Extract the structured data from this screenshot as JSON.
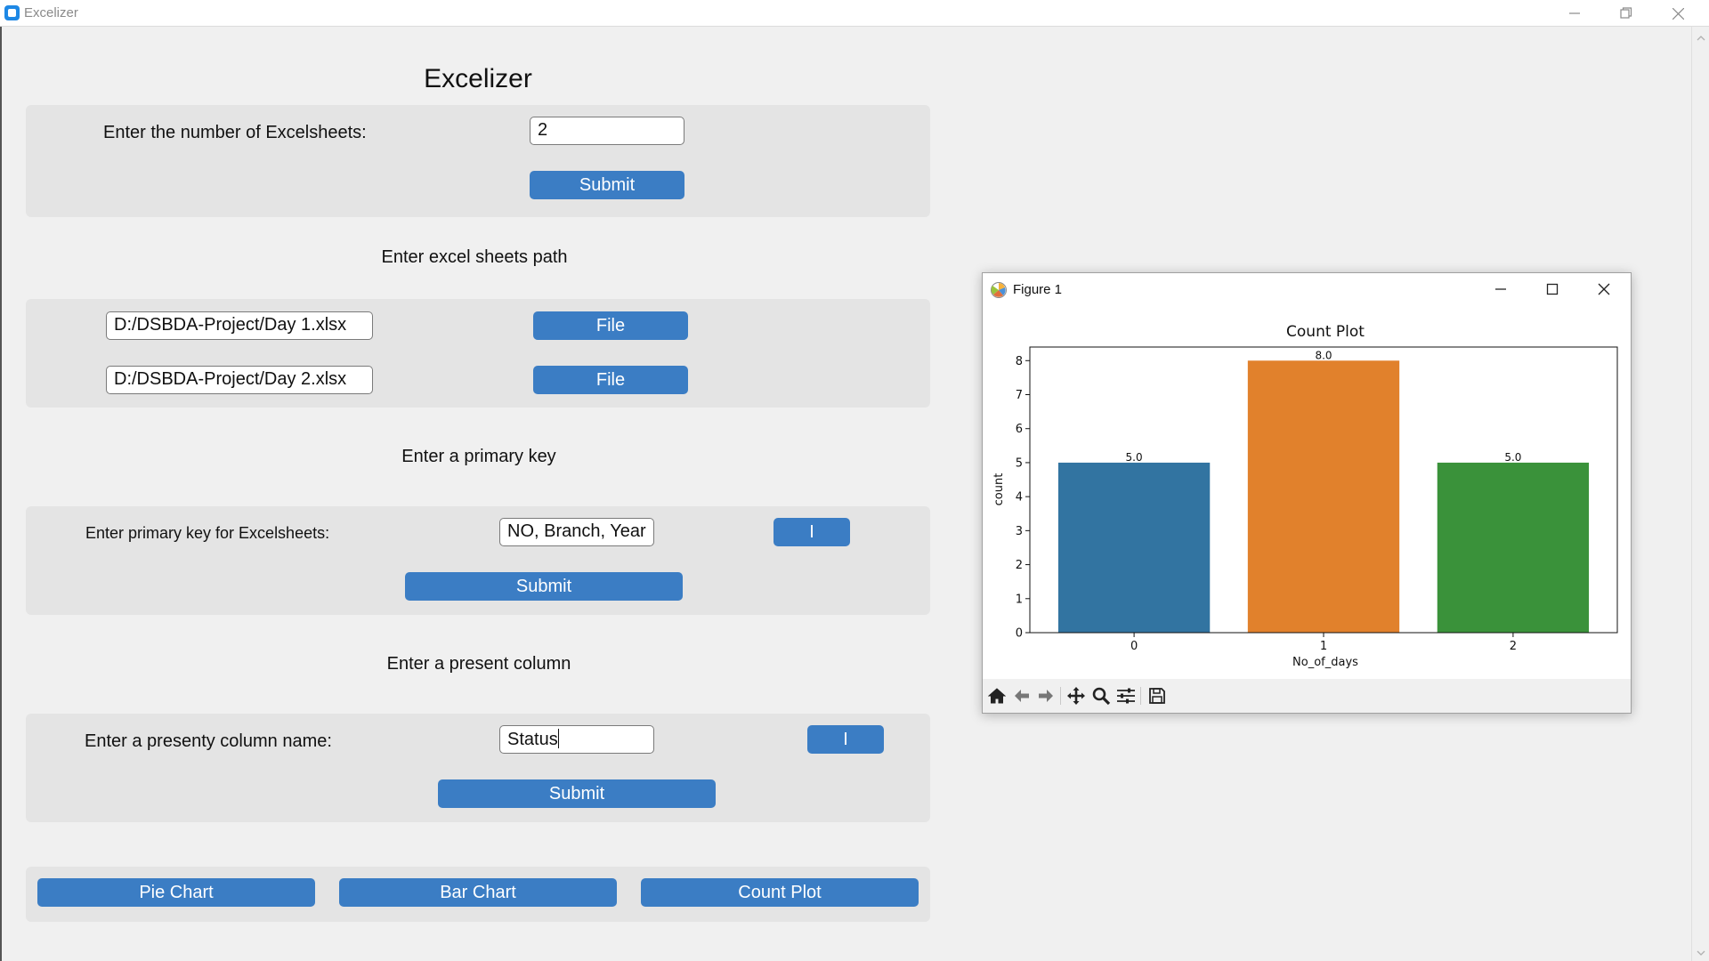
{
  "window": {
    "title": "Excelizer"
  },
  "app": {
    "heading": "Excelizer"
  },
  "sheets_panel": {
    "count_label": "Enter the number of Excelsheets:",
    "count_value": "2",
    "submit_label": "Submit"
  },
  "paths_section": {
    "label": "Enter excel sheets path",
    "rows": [
      {
        "path": "D:/DSBDA-Project/Day 1.xlsx",
        "button": "File"
      },
      {
        "path": "D:/DSBDA-Project/Day 2.xlsx",
        "button": "File"
      }
    ]
  },
  "primary_key_section": {
    "label": "Enter a primary key",
    "field_label": "Enter primary key for Excelsheets:",
    "value": "NO, Branch, Year",
    "info_button": "I",
    "submit_label": "Submit"
  },
  "present_section": {
    "label": "Enter a present column",
    "field_label": "Enter a presenty column name:",
    "value": "Status",
    "info_button": "I",
    "submit_label": "Submit"
  },
  "chart_buttons": {
    "pie": "Pie Chart",
    "bar": "Bar Chart",
    "count": "Count Plot"
  },
  "figure": {
    "window_title": "Figure 1",
    "icons": [
      "home-icon",
      "back-arrow-icon",
      "forward-arrow-icon",
      "pan-icon",
      "zoom-icon",
      "configure-icon",
      "save-icon"
    ]
  },
  "chart_data": {
    "type": "bar",
    "title": "Count Plot",
    "xlabel": "No_of_days",
    "ylabel": "count",
    "categories": [
      "0",
      "1",
      "2"
    ],
    "values": [
      5,
      8,
      5
    ],
    "data_labels": [
      "5.0",
      "8.0",
      "5.0"
    ],
    "colors": [
      "#3274a1",
      "#e1812c",
      "#3a923a"
    ],
    "ylim": [
      0,
      8.4
    ],
    "yticks": [
      0,
      1,
      2,
      3,
      4,
      5,
      6,
      7,
      8
    ],
    "grid": false
  }
}
